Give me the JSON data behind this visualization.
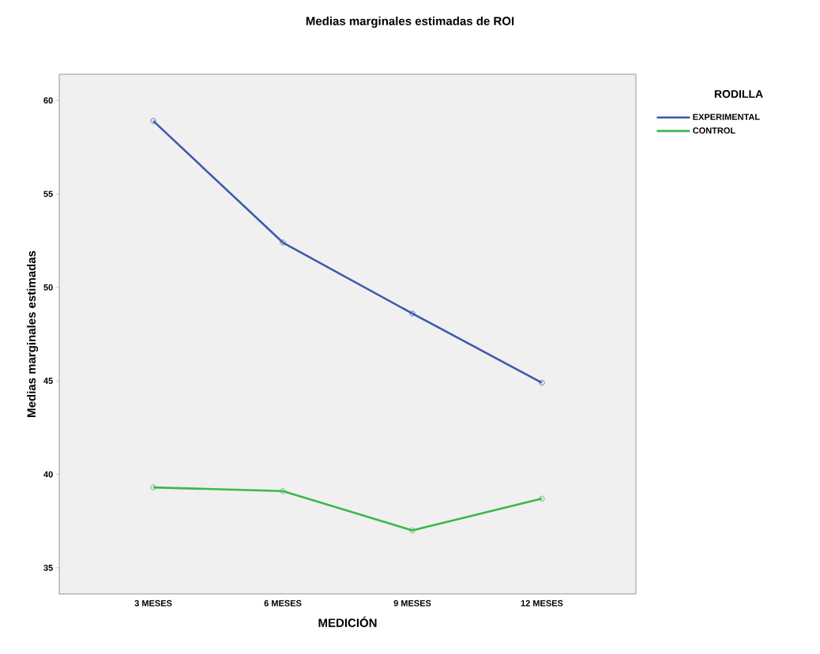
{
  "chart_data": {
    "type": "line",
    "title": "Medias marginales estimadas de ROI",
    "xlabel": "MEDICIÓN",
    "ylabel": "Medias marginales estimadas",
    "legend_title": "RODILLA",
    "categories": [
      "3 MESES",
      "6 MESES",
      "9 MESES",
      "12 MESES"
    ],
    "series": [
      {
        "name": "EXPERIMENTAL",
        "color": "#3e58ac",
        "values": [
          58.9,
          52.4,
          48.6,
          44.9
        ]
      },
      {
        "name": "CONTROL",
        "color": "#3cb84a",
        "values": [
          39.3,
          39.1,
          37.0,
          38.7
        ]
      }
    ],
    "ylim": [
      33.6,
      61.4
    ],
    "yticks": [
      35,
      40,
      45,
      50,
      55,
      60
    ],
    "grid": false,
    "legend": "top right",
    "marker": "circle",
    "line_style": "solid"
  }
}
